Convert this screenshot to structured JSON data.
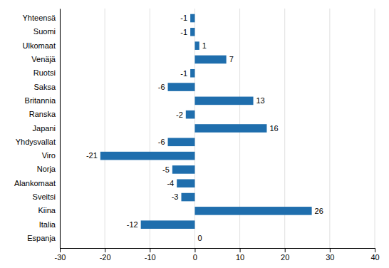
{
  "chart_data": {
    "type": "bar",
    "orientation": "horizontal",
    "categories": [
      "Espanja",
      "Italia",
      "Kiina",
      "Sveitsi",
      "Alankomaat",
      "Norja",
      "Viro",
      "Yhdysvallat",
      "Japani",
      "Ranska",
      "Britannia",
      "Saksa",
      "Ruotsi",
      "Venäjä",
      "Ulkomaat",
      "Suomi",
      "Yhteensä"
    ],
    "values": [
      0,
      -12,
      26,
      -3,
      -4,
      -5,
      -21,
      -6,
      16,
      -2,
      13,
      -6,
      -1,
      7,
      1,
      -1,
      -1
    ],
    "color": "#1F6EAD",
    "xlim": [
      -30,
      40
    ],
    "xticks": [
      -30,
      -20,
      -10,
      0,
      10,
      20,
      30,
      40
    ],
    "grid": true,
    "data_labels": true
  }
}
